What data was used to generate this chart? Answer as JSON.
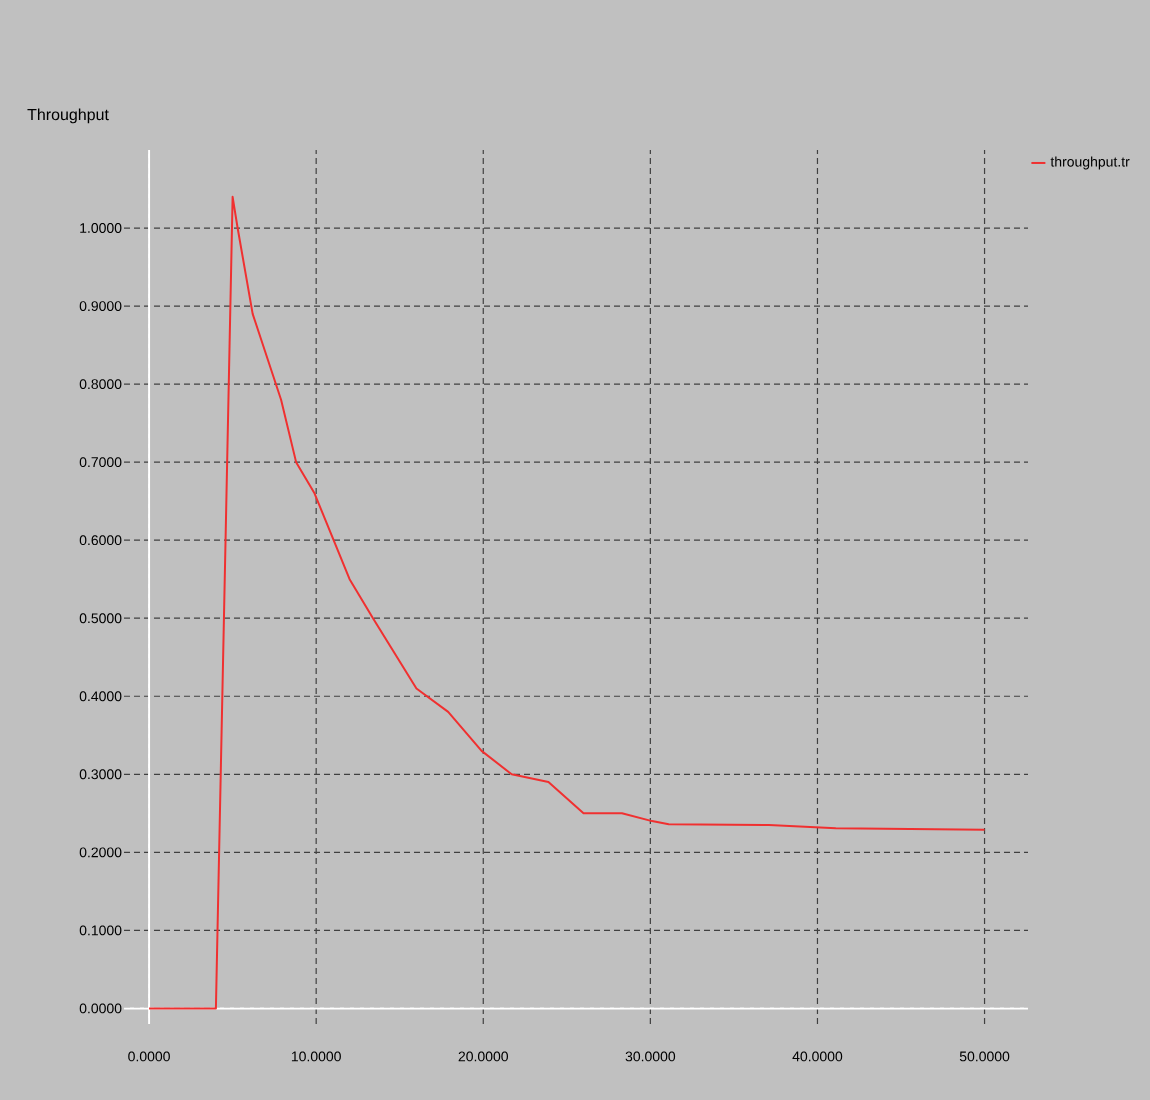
{
  "chart_data": {
    "type": "line",
    "ylabel": "Throughput",
    "x": [
      0,
      4,
      5,
      5.3,
      6.2,
      7.9,
      8.8,
      9.9,
      12,
      13.4,
      16,
      17.9,
      19.9,
      21.7,
      23.9,
      26,
      28.3,
      30.1,
      31.1,
      37.1,
      41.1,
      50
    ],
    "series": [
      {
        "name": "throughput.tr",
        "color": "#f03030",
        "values": [
          0,
          0,
          1.04,
          1.0,
          0.89,
          0.78,
          0.7,
          0.66,
          0.55,
          0.5,
          0.41,
          0.38,
          0.33,
          0.3,
          0.29,
          0.25,
          0.25,
          0.24,
          0.236,
          0.235,
          0.231,
          0.229
        ]
      }
    ],
    "xlim": [
      -1.5,
      52.6
    ],
    "ylim": [
      -0.02,
      1.1
    ],
    "xticks": [
      {
        "value": 0,
        "label": "0.0000"
      },
      {
        "value": 10,
        "label": "10.0000"
      },
      {
        "value": 20,
        "label": "20.0000"
      },
      {
        "value": 30,
        "label": "30.0000"
      },
      {
        "value": 40,
        "label": "40.0000"
      },
      {
        "value": 50,
        "label": "50.0000"
      }
    ],
    "yticks": [
      {
        "value": 0,
        "label": "0.0000"
      },
      {
        "value": 0.1,
        "label": "0.1000"
      },
      {
        "value": 0.2,
        "label": "0.2000"
      },
      {
        "value": 0.3,
        "label": "0.3000"
      },
      {
        "value": 0.4,
        "label": "0.4000"
      },
      {
        "value": 0.5,
        "label": "0.5000"
      },
      {
        "value": 0.6,
        "label": "0.6000"
      },
      {
        "value": 0.7,
        "label": "0.7000"
      },
      {
        "value": 0.8,
        "label": "0.8000"
      },
      {
        "value": 0.9,
        "label": "0.9000"
      },
      {
        "value": 1.0,
        "label": "1.0000"
      }
    ],
    "grid": true,
    "legend": "top right",
    "marker": "none",
    "line_style": "solid"
  }
}
